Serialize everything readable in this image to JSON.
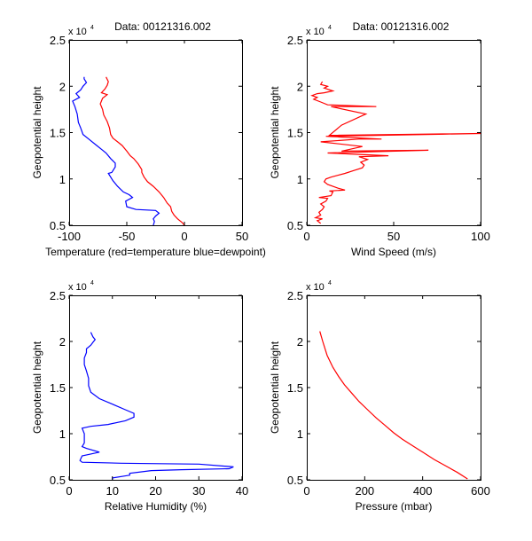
{
  "chart_data": [
    {
      "type": "line",
      "title": "Data: 00121316.002",
      "xlabel": "Temperature (red=temperature blue=dewpoint)",
      "ylabel": "Geopotential height",
      "y_exponent_label": "x 10",
      "y_exponent_power": "4",
      "xlim": [
        -100,
        50
      ],
      "ylim": [
        0.5,
        2.5
      ],
      "xticks": [
        -100,
        -50,
        0,
        50
      ],
      "xtick_labels": [
        "-100",
        "-50",
        "0",
        "50"
      ],
      "yticks": [
        0.5,
        1,
        1.5,
        2,
        2.5
      ],
      "ytick_labels": [
        "0.5",
        "1",
        "1.5",
        "2",
        "2.5"
      ],
      "grid": false,
      "series": [
        {
          "name": "temperature",
          "color": "#ff0000",
          "points": [
            [
              0,
              0.5
            ],
            [
              -2,
              0.53
            ],
            [
              -6,
              0.57
            ],
            [
              -9,
              0.61
            ],
            [
              -11,
              0.65
            ],
            [
              -12,
              0.7
            ],
            [
              -15,
              0.74
            ],
            [
              -18,
              0.8
            ],
            [
              -22,
              0.86
            ],
            [
              -27,
              0.92
            ],
            [
              -32,
              0.97
            ],
            [
              -35,
              1.02
            ],
            [
              -37,
              1.07
            ],
            [
              -37,
              1.1
            ],
            [
              -40,
              1.16
            ],
            [
              -44,
              1.22
            ],
            [
              -47,
              1.25
            ],
            [
              -50,
              1.3
            ],
            [
              -54,
              1.36
            ],
            [
              -58,
              1.4
            ],
            [
              -62,
              1.44
            ],
            [
              -64,
              1.48
            ],
            [
              -65,
              1.55
            ],
            [
              -67,
              1.62
            ],
            [
              -70,
              1.69
            ],
            [
              -71,
              1.75
            ],
            [
              -73,
              1.81
            ],
            [
              -71,
              1.87
            ],
            [
              -67,
              1.91
            ],
            [
              -72,
              1.93
            ],
            [
              -69,
              1.97
            ],
            [
              -67,
              2.01
            ],
            [
              -66,
              2.05
            ],
            [
              -68,
              2.1
            ]
          ]
        },
        {
          "name": "dewpoint",
          "color": "#0000ff",
          "points": [
            [
              -27,
              0.5
            ],
            [
              -26,
              0.54
            ],
            [
              -27,
              0.57
            ],
            [
              -25,
              0.6
            ],
            [
              -22,
              0.63
            ],
            [
              -25,
              0.66
            ],
            [
              -42,
              0.67
            ],
            [
              -50,
              0.7
            ],
            [
              -51,
              0.76
            ],
            [
              -45,
              0.8
            ],
            [
              -48,
              0.83
            ],
            [
              -53,
              0.86
            ],
            [
              -58,
              0.92
            ],
            [
              -62,
              0.98
            ],
            [
              -66,
              1.06
            ],
            [
              -63,
              1.07
            ],
            [
              -60,
              1.13
            ],
            [
              -60,
              1.17
            ],
            [
              -64,
              1.22
            ],
            [
              -68,
              1.28
            ],
            [
              -72,
              1.32
            ],
            [
              -77,
              1.37
            ],
            [
              -83,
              1.43
            ],
            [
              -88,
              1.48
            ],
            [
              -90,
              1.55
            ],
            [
              -92,
              1.61
            ],
            [
              -93,
              1.7
            ],
            [
              -95,
              1.78
            ],
            [
              -97,
              1.84
            ],
            [
              -91,
              1.88
            ],
            [
              -94,
              1.92
            ],
            [
              -90,
              1.96
            ],
            [
              -88,
              2.0
            ],
            [
              -85,
              2.04
            ],
            [
              -87,
              2.08
            ],
            [
              -87,
              2.1
            ]
          ]
        }
      ]
    },
    {
      "type": "line",
      "title": "Data: 00121316.002",
      "xlabel": "Wind Speed (m/s)",
      "ylabel": "Geopotential height",
      "y_exponent_label": "x 10",
      "y_exponent_power": "4",
      "xlim": [
        0,
        100
      ],
      "ylim": [
        0.5,
        2.5
      ],
      "xticks": [
        0,
        50,
        100
      ],
      "xtick_labels": [
        "0",
        "50",
        "100"
      ],
      "yticks": [
        0.5,
        1,
        1.5,
        2,
        2.5
      ],
      "ytick_labels": [
        "0.5",
        "1",
        "1.5",
        "2",
        "2.5"
      ],
      "grid": false,
      "series": [
        {
          "name": "wind speed",
          "color": "#ff0000",
          "points": [
            [
              8,
              0.52
            ],
            [
              6,
              0.55
            ],
            [
              9,
              0.57
            ],
            [
              5,
              0.58
            ],
            [
              8,
              0.61
            ],
            [
              7,
              0.64
            ],
            [
              9,
              0.67
            ],
            [
              10,
              0.7
            ],
            [
              8,
              0.73
            ],
            [
              11,
              0.76
            ],
            [
              12,
              0.79
            ],
            [
              7,
              0.8
            ],
            [
              14,
              0.82
            ],
            [
              15,
              0.86
            ],
            [
              13,
              0.87
            ],
            [
              22,
              0.88
            ],
            [
              18,
              0.9
            ],
            [
              15,
              0.92
            ],
            [
              12,
              0.94
            ],
            [
              10,
              0.97
            ],
            [
              11,
              1.0
            ],
            [
              14,
              1.02
            ],
            [
              18,
              1.04
            ],
            [
              22,
              1.06
            ],
            [
              27,
              1.09
            ],
            [
              32,
              1.12
            ],
            [
              33,
              1.15
            ],
            [
              31,
              1.18
            ],
            [
              35,
              1.21
            ],
            [
              30,
              1.24
            ],
            [
              47,
              1.25
            ],
            [
              12,
              1.28
            ],
            [
              70,
              1.31
            ],
            [
              20,
              1.3
            ],
            [
              32,
              1.35
            ],
            [
              8,
              1.4
            ],
            [
              30,
              1.43
            ],
            [
              43,
              1.43
            ],
            [
              11,
              1.46
            ],
            [
              100,
              1.49
            ],
            [
              13,
              1.47
            ],
            [
              20,
              1.58
            ],
            [
              34,
              1.7
            ],
            [
              14,
              1.78
            ],
            [
              40,
              1.78
            ],
            [
              12,
              1.8
            ],
            [
              8,
              1.83
            ],
            [
              4,
              1.86
            ],
            [
              6,
              1.88
            ],
            [
              3,
              1.9
            ],
            [
              6,
              1.92
            ],
            [
              10,
              1.93
            ],
            [
              15,
              1.95
            ],
            [
              10,
              1.98
            ],
            [
              12,
              2.0
            ],
            [
              8,
              2.02
            ],
            [
              9,
              2.05
            ]
          ]
        }
      ]
    },
    {
      "type": "line",
      "title": "",
      "xlabel": "Relative Humidity (%)",
      "ylabel": "Geopotential height",
      "y_exponent_label": "x 10",
      "y_exponent_power": "4",
      "xlim": [
        0,
        40
      ],
      "ylim": [
        0.5,
        2.5
      ],
      "xticks": [
        0,
        10,
        20,
        30,
        40
      ],
      "xtick_labels": [
        "0",
        "10",
        "20",
        "30",
        "40"
      ],
      "yticks": [
        0.5,
        1,
        1.5,
        2,
        2.5
      ],
      "ytick_labels": [
        "0.5",
        "1",
        "1.5",
        "2",
        "2.5"
      ],
      "grid": false,
      "series": [
        {
          "name": "relative humidity",
          "color": "#0000ff",
          "points": [
            [
              10,
              0.5
            ],
            [
              10,
              0.52
            ],
            [
              14,
              0.55
            ],
            [
              14,
              0.57
            ],
            [
              19,
              0.6
            ],
            [
              26,
              0.61
            ],
            [
              37,
              0.62
            ],
            [
              38,
              0.64
            ],
            [
              30,
              0.67
            ],
            [
              12,
              0.68
            ],
            [
              3,
              0.69
            ],
            [
              2.5,
              0.71
            ],
            [
              3,
              0.76
            ],
            [
              5,
              0.78
            ],
            [
              7,
              0.8
            ],
            [
              4,
              0.84
            ],
            [
              3,
              0.86
            ],
            [
              3.5,
              0.9
            ],
            [
              3.5,
              1.0
            ],
            [
              3,
              1.06
            ],
            [
              5,
              1.08
            ],
            [
              9,
              1.1
            ],
            [
              13,
              1.14
            ],
            [
              15,
              1.18
            ],
            [
              15,
              1.22
            ],
            [
              13,
              1.26
            ],
            [
              10,
              1.32
            ],
            [
              7,
              1.38
            ],
            [
              5,
              1.45
            ],
            [
              4.5,
              1.52
            ],
            [
              4.5,
              1.6
            ],
            [
              4,
              1.68
            ],
            [
              3.5,
              1.75
            ],
            [
              3.5,
              1.82
            ],
            [
              4,
              1.88
            ],
            [
              4,
              1.92
            ],
            [
              5,
              1.96
            ],
            [
              5.5,
              1.99
            ],
            [
              6,
              2.02
            ],
            [
              5.5,
              2.05
            ],
            [
              5,
              2.1
            ]
          ]
        }
      ]
    },
    {
      "type": "line",
      "title": "",
      "xlabel": "Pressure (mbar)",
      "ylabel": "Geopotential height",
      "y_exponent_label": "x 10",
      "y_exponent_power": "4",
      "xlim": [
        0,
        600
      ],
      "ylim": [
        0.5,
        2.5
      ],
      "xticks": [
        0,
        200,
        400,
        600
      ],
      "xtick_labels": [
        "0",
        "200",
        "400",
        "600"
      ],
      "yticks": [
        0.5,
        1,
        1.5,
        2,
        2.5
      ],
      "ytick_labels": [
        "0.5",
        "1",
        "1.5",
        "2",
        "2.5"
      ],
      "grid": false,
      "series": [
        {
          "name": "pressure",
          "color": "#ff0000",
          "points": [
            [
              45,
              2.11
            ],
            [
              55,
              2.0
            ],
            [
              70,
              1.85
            ],
            [
              90,
              1.72
            ],
            [
              110,
              1.62
            ],
            [
              130,
              1.53
            ],
            [
              155,
              1.44
            ],
            [
              180,
              1.35
            ],
            [
              210,
              1.26
            ],
            [
              240,
              1.17
            ],
            [
              270,
              1.09
            ],
            [
              300,
              1.01
            ],
            [
              330,
              0.94
            ],
            [
              360,
              0.88
            ],
            [
              400,
              0.8
            ],
            [
              440,
              0.72
            ],
            [
              480,
              0.65
            ],
            [
              520,
              0.58
            ],
            [
              555,
              0.51
            ]
          ]
        }
      ]
    }
  ]
}
